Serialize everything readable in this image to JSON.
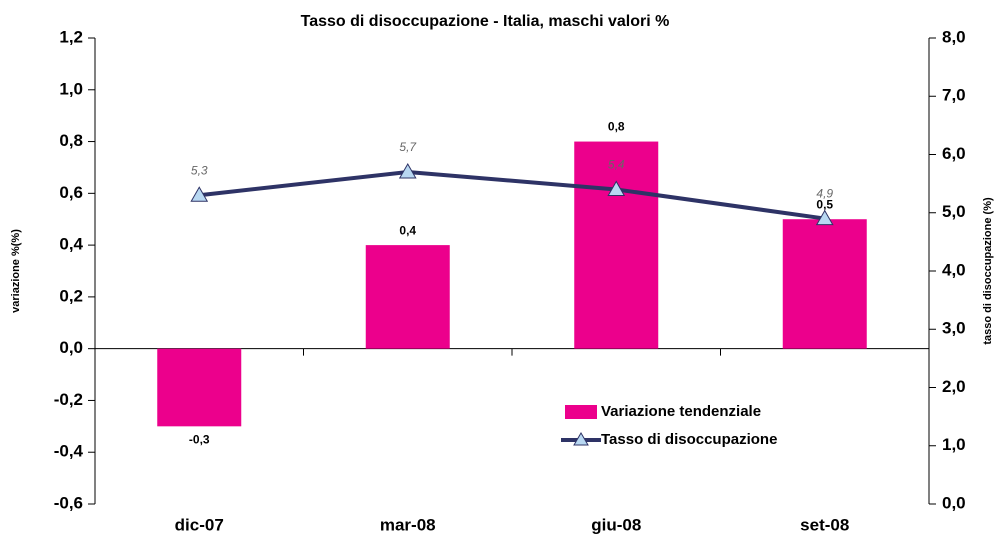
{
  "chart_data": {
    "type": "bar",
    "title": "Tasso di disoccupazione - Italia, maschi valori %",
    "ylabel": "variazione %(%)",
    "y2label": "tasso di disoccupazione (%)",
    "categories": [
      "dic-07",
      "mar-08",
      "giu-08",
      "set-08"
    ],
    "series": [
      {
        "name": "Variazione tendenziale",
        "type": "bar",
        "color": "#ec008c",
        "values": [
          -0.3,
          0.4,
          0.8,
          0.5
        ],
        "value_labels": [
          "-0,3",
          "0,4",
          "0,8",
          "0,5"
        ]
      },
      {
        "name": "Tasso di disoccupazione",
        "type": "line",
        "axis": "y2",
        "color": "#2e3366",
        "marker_color": "#b8d8f2",
        "values": [
          5.3,
          5.7,
          5.4,
          4.9
        ],
        "value_labels": [
          "5,3",
          "5,7",
          "5,4",
          "4,9"
        ]
      }
    ],
    "ylim": [
      -0.6,
      1.2
    ],
    "yticks": [
      {
        "value": -0.6,
        "label": "-0,6"
      },
      {
        "value": -0.4,
        "label": "-0,4"
      },
      {
        "value": -0.2,
        "label": "-0,2"
      },
      {
        "value": 0,
        "label": "0,0"
      },
      {
        "value": 0.2,
        "label": "0,2"
      },
      {
        "value": 0.4,
        "label": "0,4"
      },
      {
        "value": 0.6,
        "label": "0,6"
      },
      {
        "value": 0.8,
        "label": "0,8"
      },
      {
        "value": 1.0,
        "label": "1,0"
      },
      {
        "value": 1.2,
        "label": "1,2"
      }
    ],
    "y2lim": [
      0,
      8
    ],
    "y2ticks": [
      {
        "value": 0,
        "label": "0,0"
      },
      {
        "value": 1,
        "label": "1,0"
      },
      {
        "value": 2,
        "label": "2,0"
      },
      {
        "value": 3,
        "label": "3,0"
      },
      {
        "value": 4,
        "label": "4,0"
      },
      {
        "value": 5,
        "label": "5,0"
      },
      {
        "value": 6,
        "label": "6,0"
      },
      {
        "value": 7,
        "label": "7,0"
      },
      {
        "value": 8,
        "label": "8,0"
      }
    ]
  }
}
